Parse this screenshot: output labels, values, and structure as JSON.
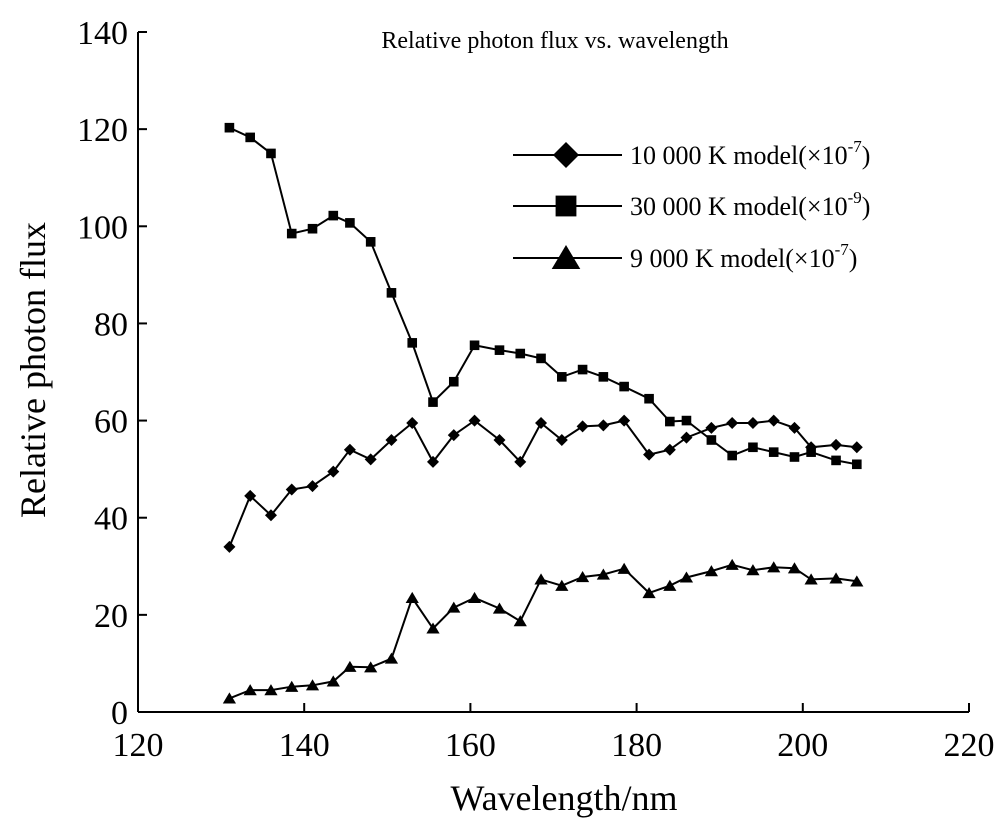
{
  "chart_data": {
    "type": "line",
    "title": "Relative photon flux vs. wavelength",
    "xlabel": "Wavelength/nm",
    "ylabel": "Relative photon flux",
    "xlim": [
      120,
      220
    ],
    "ylim": [
      0,
      140
    ],
    "xticks": [
      120,
      140,
      160,
      180,
      200,
      220
    ],
    "yticks": [
      0,
      20,
      40,
      60,
      80,
      100,
      120,
      140
    ],
    "grid": false,
    "legend_position": "top-right",
    "x": [
      131,
      133.5,
      136,
      138.5,
      141,
      143.5,
      145.5,
      148,
      150.5,
      153,
      155.5,
      158,
      160.5,
      163.5,
      166,
      168.5,
      171,
      173.5,
      176,
      178.5,
      181.5,
      184,
      186,
      189,
      191.5,
      194,
      196.5,
      199,
      201,
      204,
      206.5
    ],
    "series": [
      {
        "name": "10 000 K model(×10",
        "exponent": "-7",
        "name_suffix": ")",
        "marker": "diamond",
        "values": [
          34,
          44.5,
          40.5,
          45.8,
          46.5,
          49.5,
          54,
          52,
          56,
          59.5,
          51.5,
          57,
          60,
          56,
          51.5,
          59.5,
          56,
          58.8,
          59,
          60,
          53,
          54,
          56.5,
          58.5,
          59.5,
          59.5,
          60,
          58.5,
          54.5,
          55,
          54.5
        ]
      },
      {
        "name": "30 000 K model(×10",
        "exponent": "-9",
        "name_suffix": ")",
        "marker": "square",
        "values": [
          120.3,
          118.3,
          115,
          98.5,
          99.5,
          102.2,
          100.7,
          96.8,
          86.3,
          76,
          63.8,
          68,
          75.5,
          74.5,
          73.8,
          72.8,
          69,
          70.5,
          69,
          67,
          64.5,
          59.8,
          60,
          56,
          52.8,
          54.5,
          53.5,
          52.5,
          53.5,
          51.8,
          51
        ]
      },
      {
        "name": "9 000 K model(×10",
        "exponent": "-7",
        "name_suffix": ")",
        "marker": "triangle",
        "values": [
          2.8,
          4.5,
          4.5,
          5.2,
          5.5,
          6.3,
          9.3,
          9.2,
          11,
          23.5,
          17.2,
          21.5,
          23.5,
          21.3,
          18.7,
          27.3,
          26,
          27.8,
          28.3,
          29.5,
          24.5,
          26,
          27.7,
          29,
          30.3,
          29.2,
          29.8,
          29.6,
          27.3,
          27.5,
          26.9
        ]
      }
    ]
  }
}
